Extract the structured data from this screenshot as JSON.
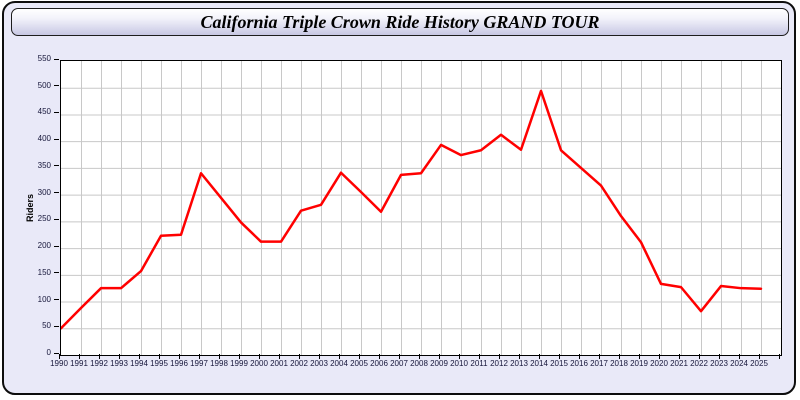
{
  "window": {
    "title": "California Triple Crown Ride History GRAND TOUR"
  },
  "colors": {
    "page_background": "#ffffff",
    "frame_background": "#e9e9f8",
    "frame_border": "#0d0d0d",
    "titlebar_gradient_top": "#ffffff",
    "titlebar_gradient_bottom": "#c7c7e3",
    "plot_background": "#ffffff",
    "gridline": "#c8c8c8",
    "axis": "#000000",
    "tick_label": "#16163a",
    "series_line": "#ff0000"
  },
  "chart_data": {
    "type": "line",
    "title": "California Triple Crown Ride History GRAND TOUR",
    "xlabel": "",
    "ylabel": "Riders",
    "x": [
      1990,
      1991,
      1992,
      1993,
      1994,
      1995,
      1996,
      1997,
      1998,
      1999,
      2000,
      2001,
      2002,
      2003,
      2004,
      2005,
      2006,
      2007,
      2008,
      2009,
      2010,
      2011,
      2012,
      2013,
      2014,
      2015,
      2016,
      2017,
      2018,
      2019,
      2020,
      2021,
      2022,
      2023,
      2024,
      2025
    ],
    "values": [
      50,
      88,
      125,
      125,
      157,
      223,
      225,
      340,
      294,
      248,
      212,
      212,
      270,
      281,
      341,
      305,
      268,
      337,
      340,
      393,
      374,
      383,
      412,
      384,
      494,
      383,
      350,
      317,
      260,
      211,
      133,
      127,
      82,
      129,
      125,
      124
    ],
    "ylim": [
      0,
      550
    ],
    "ytick_step": 50,
    "xtick_step": 1,
    "grid": true,
    "legend_position": "none",
    "line_color": "#ff0000"
  }
}
